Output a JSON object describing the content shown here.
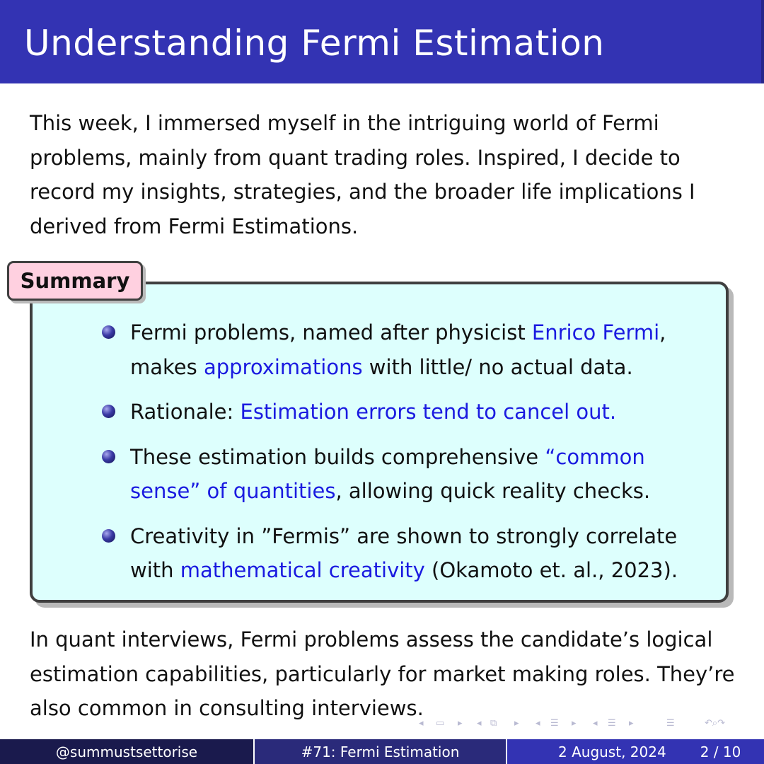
{
  "title": "Understanding Fermi Estimation",
  "intro": "This week, I immersed myself in the intriguing world of Fermi problems, mainly from quant trading roles. Inspired, I decide to record my insights, strategies, and the broader life implications I derived from Fermi Estimations.",
  "summary": {
    "label": "Summary",
    "bullets": [
      {
        "pre": "Fermi problems, named after physicist ",
        "hl1": "Enrico Fermi",
        "mid": ", makes ",
        "hl2": "approximations",
        "post": " with little/ no actual data."
      },
      {
        "pre": "Rationale: ",
        "hl1": "Estimation errors tend to cancel out."
      },
      {
        "pre": "These estimation builds comprehensive ",
        "hl1": "“common sense” of quantities",
        "post": ", allowing quick reality checks."
      },
      {
        "pre": "Creativity in ”Fermis” are shown to strongly correlate with ",
        "hl1": "mathematical creativity",
        "post": " (Okamoto et. al., 2023)."
      }
    ]
  },
  "outro": "In quant interviews, Fermi problems assess the candidate’s logical estimation capabilities, particularly for market making roles. They’re also common in consulting interviews.",
  "footer": {
    "author": "@summustsettorise",
    "short_title": "#71: Fermi Estimation",
    "date": "2 August, 2024",
    "page": "2 / 10"
  },
  "colors": {
    "title_bar": "#3333b3",
    "summary_box_bg": "#ddfffd",
    "summary_tab_bg": "#ffd0e0",
    "highlight_text": "#1a1ae0"
  },
  "nav_icons": [
    "nav-prev-icon",
    "frame-icon",
    "nav-next-icon",
    "subsection-icon",
    "section-icon",
    "toc-icon",
    "search-icon"
  ]
}
